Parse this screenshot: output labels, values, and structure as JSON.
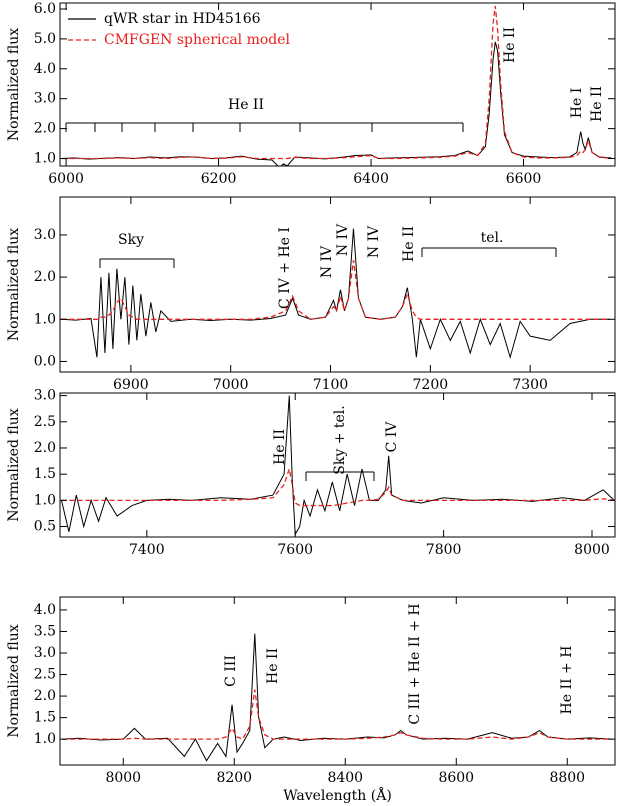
{
  "chart_data": [
    {
      "type": "line",
      "ylabel": "Normalized flux",
      "legend": "upper left",
      "xlim": [
        5992,
        6720
      ],
      "ylim": [
        0.75,
        6.2
      ],
      "xticks": [
        6000,
        6200,
        6400,
        6600
      ],
      "yticks": [
        {
          "value": 1,
          "label": "1.0"
        },
        {
          "value": 2,
          "label": "2.0"
        },
        {
          "value": 3,
          "label": "3.0"
        },
        {
          "value": 4,
          "label": "4.0"
        },
        {
          "value": 5,
          "label": "5.0"
        },
        {
          "value": 6,
          "label": "6.0"
        }
      ],
      "x": [
        5995,
        6010,
        6030,
        6050,
        6070,
        6090,
        6110,
        6130,
        6150,
        6170,
        6190,
        6210,
        6230,
        6250,
        6270,
        6280,
        6285,
        6290,
        6300,
        6320,
        6340,
        6360,
        6380,
        6400,
        6410,
        6430,
        6460,
        6490,
        6510,
        6527,
        6540,
        6550,
        6555,
        6560,
        6563,
        6566,
        6570,
        6575,
        6585,
        6600,
        6620,
        6640,
        6660,
        6670,
        6675,
        6678,
        6681,
        6685,
        6690,
        6700,
        6715
      ],
      "series": [
        {
          "name": "qWR star in HD45166",
          "color": "#000000",
          "dash": false,
          "values": [
            1.0,
            1.02,
            0.98,
            1.01,
            1.03,
            1.0,
            1.05,
            1.02,
            1.06,
            1.05,
            1.0,
            1.02,
            1.08,
            0.98,
            0.95,
            0.7,
            0.82,
            0.75,
            1.05,
            1.02,
            0.99,
            1.04,
            1.1,
            1.12,
            1.0,
            1.02,
            1.04,
            1.06,
            1.1,
            1.25,
            1.1,
            1.4,
            2.5,
            4.3,
            4.9,
            4.6,
            3.2,
            1.8,
            1.2,
            1.08,
            1.05,
            1.03,
            1.05,
            1.2,
            1.9,
            1.5,
            1.3,
            1.7,
            1.2,
            1.05,
            1.02
          ]
        },
        {
          "name": "CMFGEN spherical model",
          "color": "#e8201e",
          "dash": true,
          "values": [
            1.0,
            1.0,
            1.0,
            1.0,
            1.02,
            1.0,
            1.03,
            1.0,
            1.04,
            1.05,
            1.0,
            1.01,
            1.06,
            1.0,
            1.0,
            1.0,
            1.0,
            1.0,
            1.04,
            1.0,
            1.0,
            1.02,
            1.06,
            1.1,
            1.0,
            1.0,
            1.02,
            1.04,
            1.08,
            1.2,
            1.1,
            1.5,
            3.0,
            5.5,
            6.1,
            5.3,
            3.5,
            1.9,
            1.2,
            1.05,
            1.02,
            1.02,
            1.04,
            1.1,
            1.25,
            1.2,
            1.3,
            1.6,
            1.2,
            1.04,
            1.01
          ]
        }
      ],
      "annotations": [
        "He II",
        "He II",
        "He I",
        "He II"
      ]
    },
    {
      "type": "line",
      "ylabel": "Normalized flux",
      "xlim": [
        6829,
        7385
      ],
      "ylim": [
        -0.25,
        3.9
      ],
      "xticks": [
        6900,
        7000,
        7100,
        7200,
        7300
      ],
      "yticks": [
        {
          "value": 0,
          "label": "0.0"
        },
        {
          "value": 1,
          "label": "1.0"
        },
        {
          "value": 2,
          "label": "2.0"
        },
        {
          "value": 3,
          "label": "3.0"
        }
      ],
      "x": [
        6830,
        6845,
        6860,
        6866,
        6870,
        6874,
        6878,
        6882,
        6886,
        6890,
        6894,
        6898,
        6902,
        6906,
        6910,
        6915,
        6920,
        6925,
        6930,
        6940,
        6960,
        6980,
        7000,
        7020,
        7040,
        7055,
        7062,
        7068,
        7080,
        7095,
        7103,
        7106,
        7110,
        7114,
        7118,
        7123,
        7128,
        7135,
        7150,
        7165,
        7172,
        7177,
        7182,
        7186,
        7190,
        7200,
        7210,
        7220,
        7230,
        7240,
        7250,
        7260,
        7270,
        7280,
        7290,
        7300,
        7320,
        7340,
        7360,
        7380
      ],
      "series": [
        {
          "color": "#000000",
          "dash": false,
          "values": [
            1.0,
            0.98,
            1.02,
            0.1,
            2.0,
            0.2,
            2.1,
            0.3,
            2.2,
            1.0,
            2.0,
            0.4,
            1.8,
            0.5,
            1.6,
            0.6,
            1.4,
            0.7,
            1.2,
            0.95,
            1.0,
            0.97,
            1.0,
            0.98,
            1.02,
            1.1,
            1.5,
            1.1,
            1.0,
            1.05,
            1.45,
            1.2,
            1.7,
            1.2,
            1.5,
            3.15,
            1.5,
            1.05,
            1.0,
            1.05,
            1.3,
            1.75,
            1.0,
            0.1,
            1.0,
            0.3,
            1.0,
            0.5,
            0.95,
            0.2,
            1.0,
            0.4,
            0.9,
            0.1,
            0.95,
            0.6,
            0.5,
            0.9,
            1.0,
            1.0
          ]
        },
        {
          "color": "#e8201e",
          "dash": true,
          "values": [
            1.0,
            1.0,
            1.0,
            1.0,
            1.05,
            1.05,
            1.1,
            1.2,
            1.4,
            1.5,
            1.3,
            1.1,
            1.05,
            1.0,
            1.0,
            1.0,
            1.0,
            1.0,
            1.0,
            1.0,
            1.0,
            1.0,
            1.0,
            1.0,
            1.05,
            1.2,
            1.55,
            1.2,
            1.0,
            1.05,
            1.3,
            1.2,
            1.55,
            1.2,
            1.5,
            2.4,
            1.5,
            1.05,
            1.0,
            1.05,
            1.3,
            1.6,
            1.2,
            1.05,
            1.0,
            1.0,
            1.0,
            1.0,
            1.0,
            1.0,
            1.0,
            1.0,
            1.0,
            1.0,
            1.0,
            1.0,
            1.0,
            1.0,
            1.0,
            1.0
          ]
        }
      ],
      "annotations": [
        "Sky",
        "C IV + He I",
        "N IV",
        "N IV",
        "N IV",
        "He II",
        "tel."
      ]
    },
    {
      "type": "line",
      "ylabel": "Normalized flux",
      "xlim": [
        7283,
        8031
      ],
      "ylim": [
        0.3,
        3.05
      ],
      "xticks": [
        7400,
        7600,
        7800,
        8000
      ],
      "yticks": [
        0.5,
        {
          "value": 1,
          "label": "1.0"
        },
        1.5,
        {
          "value": 2,
          "label": "2.0"
        },
        2.5,
        {
          "value": 3,
          "label": "3.0"
        }
      ],
      "x": [
        7285,
        7295,
        7305,
        7315,
        7325,
        7335,
        7345,
        7360,
        7380,
        7400,
        7430,
        7460,
        7500,
        7540,
        7570,
        7585,
        7592,
        7596,
        7600,
        7606,
        7612,
        7620,
        7630,
        7640,
        7650,
        7660,
        7670,
        7680,
        7690,
        7700,
        7712,
        7722,
        7726,
        7730,
        7745,
        7770,
        7800,
        7840,
        7880,
        7920,
        7960,
        7990,
        8015,
        8030
      ],
      "series": [
        {
          "color": "#000000",
          "dash": false,
          "values": [
            1.0,
            0.4,
            1.1,
            0.5,
            1.0,
            0.6,
            1.05,
            0.7,
            0.9,
            1.0,
            1.02,
            1.0,
            1.05,
            1.02,
            1.1,
            1.5,
            3.0,
            1.4,
            0.35,
            0.5,
            1.0,
            0.7,
            1.2,
            0.8,
            1.35,
            0.8,
            1.5,
            0.9,
            1.6,
            1.0,
            1.0,
            1.2,
            1.85,
            1.1,
            1.0,
            0.95,
            1.05,
            1.0,
            1.02,
            0.98,
            1.05,
            1.0,
            1.2,
            1.0
          ]
        },
        {
          "color": "#e8201e",
          "dash": true,
          "values": [
            1.0,
            1.0,
            1.0,
            1.0,
            1.0,
            1.0,
            1.0,
            1.0,
            1.0,
            1.0,
            1.0,
            1.0,
            1.0,
            1.02,
            1.05,
            1.3,
            1.6,
            1.3,
            0.95,
            0.9,
            0.9,
            0.9,
            0.9,
            0.9,
            0.9,
            0.92,
            0.95,
            0.97,
            1.0,
            1.0,
            1.02,
            1.15,
            1.25,
            1.1,
            1.0,
            1.0,
            1.0,
            1.0,
            1.0,
            1.0,
            1.0,
            1.0,
            1.03,
            1.0
          ]
        }
      ],
      "annotations": [
        "He II",
        "Sky + tel.",
        "C IV"
      ]
    },
    {
      "type": "line",
      "ylabel": "Normalized flux",
      "xlabel": "Wavelength (Å)",
      "xlim": [
        7886,
        8886
      ],
      "ylim": [
        0.4,
        4.3
      ],
      "xticks": [
        8000,
        8200,
        8400,
        8600,
        8800
      ],
      "yticks": [
        {
          "value": 1,
          "label": "1.0"
        },
        1.5,
        {
          "value": 2,
          "label": "2.0"
        },
        2.5,
        {
          "value": 3,
          "label": "3.0"
        },
        3.5,
        {
          "value": 4,
          "label": "4.0"
        }
      ],
      "x": [
        7890,
        7920,
        7960,
        8000,
        8020,
        8040,
        8080,
        8110,
        8130,
        8150,
        8170,
        8185,
        8196,
        8205,
        8215,
        8228,
        8237,
        8244,
        8255,
        8270,
        8290,
        8320,
        8360,
        8400,
        8440,
        8470,
        8490,
        8500,
        8510,
        8540,
        8580,
        8620,
        8665,
        8700,
        8730,
        8750,
        8765,
        8800,
        8840,
        8880
      ],
      "series": [
        {
          "color": "#000000",
          "dash": false,
          "values": [
            1.0,
            1.02,
            0.98,
            1.0,
            1.25,
            1.0,
            1.02,
            0.6,
            1.0,
            0.5,
            0.9,
            0.6,
            1.8,
            0.7,
            0.9,
            1.2,
            3.45,
            1.5,
            0.8,
            1.0,
            1.05,
            0.97,
            1.02,
            1.0,
            1.05,
            1.03,
            1.1,
            1.2,
            1.1,
            1.0,
            1.02,
            1.0,
            1.15,
            1.02,
            1.05,
            1.2,
            1.05,
            1.0,
            1.03,
            1.0
          ]
        },
        {
          "color": "#e8201e",
          "dash": true,
          "values": [
            1.0,
            1.0,
            1.0,
            1.0,
            1.02,
            1.0,
            1.0,
            1.0,
            1.0,
            1.0,
            1.0,
            1.05,
            1.25,
            1.05,
            1.0,
            1.3,
            2.15,
            1.5,
            1.1,
            1.0,
            1.0,
            1.0,
            1.0,
            1.0,
            1.02,
            1.05,
            1.1,
            1.15,
            1.1,
            1.02,
            1.0,
            1.0,
            1.05,
            1.0,
            1.05,
            1.15,
            1.05,
            1.0,
            1.0,
            1.0
          ]
        }
      ],
      "annotations": [
        "C III",
        "He II",
        "C III + He II + H",
        "He II + H"
      ]
    }
  ]
}
